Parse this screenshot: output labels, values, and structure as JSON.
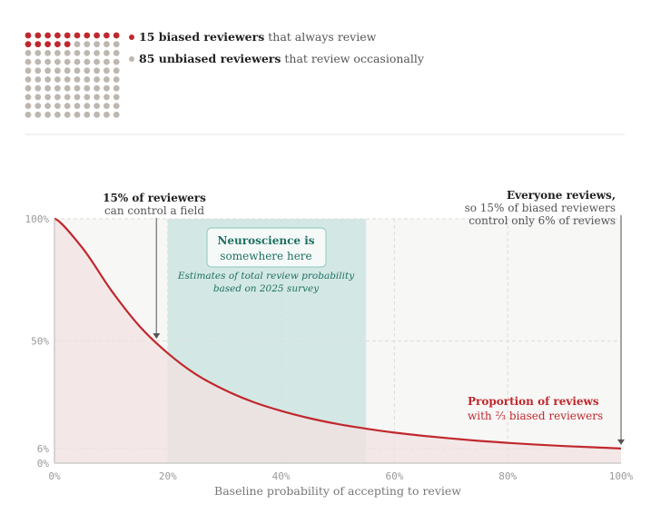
{
  "legend": {
    "biased": {
      "count": "15",
      "bold": "15 biased reviewers",
      "rest": " that always review",
      "color": "#c0282d"
    },
    "unbiased": {
      "count": "85",
      "bold": "85 unbiased reviewers",
      "rest": " that review occasionally",
      "color": "#bdb7b0"
    }
  },
  "waffle": {
    "total": 100,
    "biased": 15,
    "columns": 10
  },
  "colors": {
    "curve": "#c0282d",
    "curve_fill": "#f3e2e1",
    "highlight": "#d3e8e4",
    "plot_bg": "#f7f7f6",
    "annotation_teal": "#1f6f62"
  },
  "annotations": {
    "left": {
      "bold": "15% of reviewers",
      "text": "can control a field",
      "x": 18
    },
    "right": {
      "bold": "Everyone reviews,",
      "line1": "so 15% of biased reviewers",
      "line2": "control only 6% of reviews",
      "x": 100
    },
    "box": {
      "line1": "Neuroscience is",
      "line2": "somewhere here"
    },
    "box_note": {
      "line1": "Estimates of total review probability",
      "line2": "based on 2025 survey"
    },
    "series": {
      "line1": "Proportion of reviews",
      "line2": "with ⅔ biased reviewers"
    }
  },
  "chart_data": {
    "type": "area",
    "xlabel": "Baseline probability of accepting to review",
    "ylabel": "",
    "xlim": [
      0,
      100
    ],
    "ylim": [
      0,
      100
    ],
    "x_ticks": [
      "0%",
      "20%",
      "40%",
      "60%",
      "80%",
      "100%"
    ],
    "x_tick_values": [
      0,
      20,
      40,
      60,
      80,
      100
    ],
    "y_ticks": [
      "0%",
      "6%",
      "50%",
      "100%"
    ],
    "y_tick_values": [
      0,
      6,
      50,
      100
    ],
    "grid": true,
    "highlight_range": [
      20,
      55
    ],
    "x": [
      0,
      5,
      10,
      15,
      20,
      25,
      30,
      35,
      40,
      45,
      50,
      55,
      60,
      65,
      70,
      75,
      80,
      85,
      90,
      95,
      100
    ],
    "y": [
      100,
      87.9,
      70.8,
      56.1,
      45,
      36.3,
      30,
      25.1,
      21.4,
      18.4,
      16,
      14.1,
      12.5,
      11.2,
      10.1,
      9.1,
      8.3,
      7.6,
      7,
      6.5,
      6
    ]
  }
}
